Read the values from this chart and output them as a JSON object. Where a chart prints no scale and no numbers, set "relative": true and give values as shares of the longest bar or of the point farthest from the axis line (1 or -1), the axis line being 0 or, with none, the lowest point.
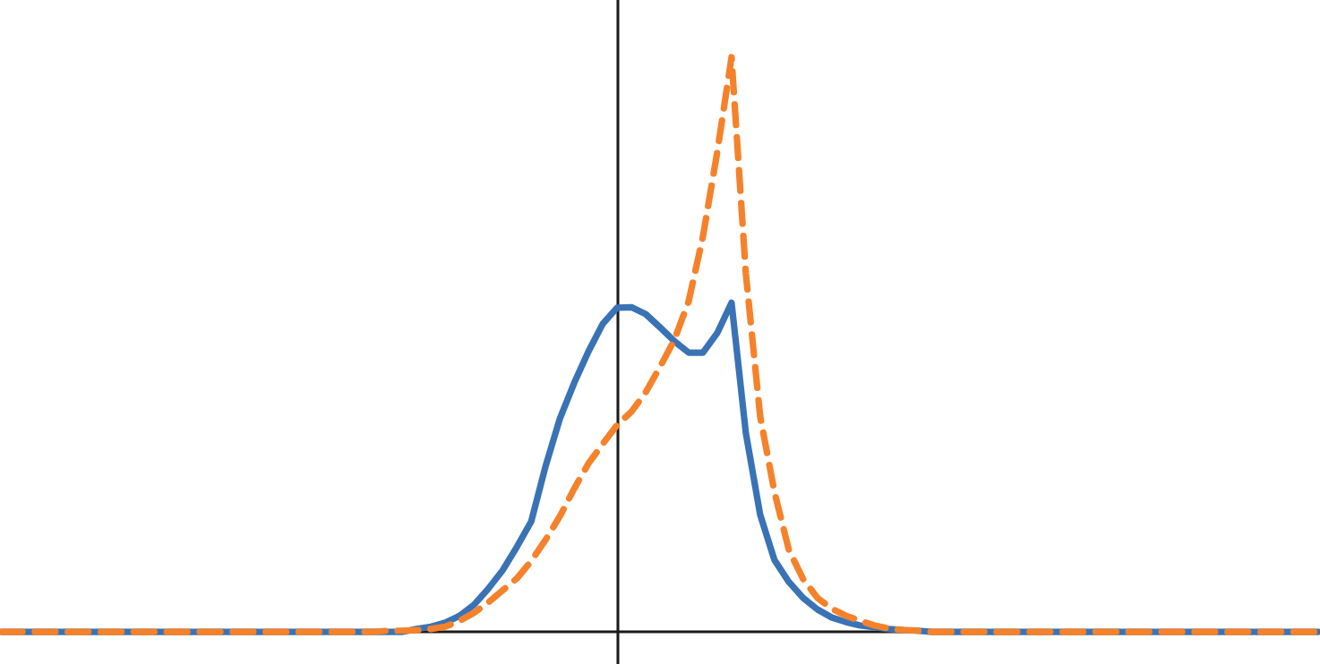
{
  "chart_data": {
    "type": "line",
    "relative": true,
    "categories": [
      null,
      null,
      null,
      null,
      null,
      null,
      null,
      null,
      null,
      null,
      null,
      null,
      null,
      null,
      null,
      null,
      null,
      null,
      null,
      null,
      null,
      null,
      null,
      null,
      null,
      null,
      null,
      null,
      null,
      null,
      null,
      null,
      null,
      null,
      null,
      null,
      null,
      null,
      null,
      null,
      null,
      null,
      null,
      null,
      null,
      null,
      null,
      null,
      null,
      null,
      null,
      null,
      null,
      null,
      null,
      null,
      null,
      null,
      null,
      null,
      null,
      null,
      null,
      null,
      null,
      null,
      null,
      null,
      null,
      null,
      null,
      null,
      null,
      null,
      null,
      null,
      null,
      null,
      null,
      null,
      null,
      null,
      null,
      null,
      null,
      null,
      null,
      null,
      null,
      null,
      null,
      null,
      null
    ],
    "series": [
      {
        "color": "#3a73b5",
        "line_style": "solid",
        "values": [
          0,
          0,
          0,
          0,
          0,
          0,
          0,
          0,
          0,
          0,
          0,
          0,
          0,
          0,
          0,
          0,
          0,
          0,
          0,
          0,
          0,
          0,
          0,
          0,
          0,
          0,
          0,
          0,
          0,
          0.005,
          0.009,
          0.016,
          0.028,
          0.047,
          0.075,
          0.107,
          0.148,
          0.192,
          0.288,
          0.371,
          0.433,
          0.488,
          0.536,
          0.564,
          0.565,
          0.553,
          0.53,
          0.506,
          0.486,
          0.486,
          0.52,
          0.573,
          0.346,
          0.204,
          0.125,
          0.087,
          0.059,
          0.039,
          0.025,
          0.017,
          0.011,
          0.008,
          0.005,
          0.003,
          0.002,
          0,
          0,
          0,
          0,
          0,
          0,
          0,
          0,
          0,
          0,
          0,
          0,
          0,
          0,
          0,
          0,
          0,
          0,
          0,
          0,
          0,
          0,
          0,
          0,
          0,
          0,
          0,
          0
        ]
      },
      {
        "color": "#f5822a",
        "line_style": "dashed",
        "values": [
          0,
          0,
          0,
          0,
          0,
          0,
          0,
          0,
          0,
          0,
          0,
          0,
          0,
          0,
          0,
          0,
          0,
          0,
          0,
          0,
          0,
          0,
          0,
          0,
          0,
          0,
          0,
          0.002,
          0.002,
          0.003,
          0.005,
          0.009,
          0.019,
          0.033,
          0.051,
          0.072,
          0.093,
          0.123,
          0.16,
          0.201,
          0.249,
          0.293,
          0.327,
          0.36,
          0.383,
          0.417,
          0.461,
          0.508,
          0.575,
          0.688,
          0.835,
          1,
          0.623,
          0.375,
          0.243,
          0.143,
          0.092,
          0.059,
          0.04,
          0.028,
          0.019,
          0.011,
          0.006,
          0.003,
          0.002,
          0,
          0,
          0,
          0,
          0,
          0,
          0,
          0,
          0,
          0,
          0,
          0,
          0,
          0,
          0,
          0,
          0,
          0,
          0,
          0,
          0,
          0,
          0,
          0,
          0,
          0,
          0,
          0
        ]
      }
    ]
  }
}
